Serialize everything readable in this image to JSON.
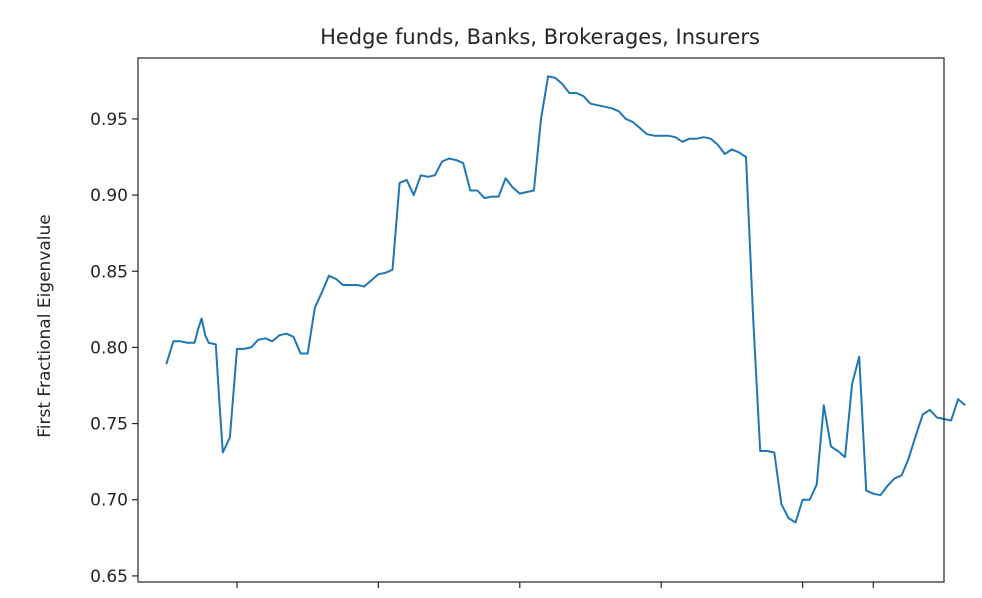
{
  "chart_data": {
    "type": "line",
    "title": "Hedge funds, Banks, Brokerages, Insurers",
    "xlabel": "",
    "ylabel": "First Fractional Eigenvalue",
    "ylim": [
      0.646,
      0.99
    ],
    "xlim": [
      -8,
      220
    ],
    "yticks": [
      "0.65",
      "0.70",
      "0.75",
      "0.80",
      "0.85",
      "0.90",
      "0.95"
    ],
    "ytick_values": [
      0.65,
      0.7,
      0.75,
      0.8,
      0.85,
      0.9,
      0.95
    ],
    "xtick_values": [
      20,
      60,
      100,
      140,
      180,
      200
    ],
    "grid": false,
    "color": "#1f77b4",
    "series": [
      {
        "x": [
          0,
          2,
          4,
          6,
          8,
          9,
          10,
          11,
          12,
          14,
          15,
          16,
          17,
          18,
          20,
          22,
          24,
          26,
          28,
          30,
          32,
          34,
          36,
          38,
          40,
          42,
          44,
          46,
          48,
          50,
          52,
          54,
          56,
          58,
          60,
          62,
          64,
          66,
          68,
          70,
          72,
          74,
          76,
          78,
          80,
          82,
          84,
          86,
          88,
          90,
          92,
          94,
          96,
          98,
          100,
          102,
          104,
          106,
          108,
          110,
          112,
          114,
          116,
          118,
          120,
          122,
          124,
          126,
          128,
          130,
          132,
          134,
          136,
          138,
          140,
          142,
          144,
          146,
          148,
          150,
          152,
          154,
          156,
          158,
          160,
          162,
          164,
          166,
          168,
          170,
          172,
          174,
          176,
          178,
          180,
          182,
          184,
          186,
          188,
          190,
          192,
          194,
          196,
          198,
          200,
          202,
          204,
          206,
          208,
          210,
          212,
          214,
          216,
          218,
          220,
          222,
          224,
          226
        ],
        "y": [
          0.789,
          0.804,
          0.804,
          0.803,
          0.803,
          0.812,
          0.819,
          0.808,
          0.803,
          0.802,
          0.765,
          0.731,
          0.736,
          0.741,
          0.799,
          0.799,
          0.8,
          0.805,
          0.806,
          0.804,
          0.808,
          0.809,
          0.807,
          0.796,
          0.796,
          0.826,
          0.836,
          0.847,
          0.845,
          0.841,
          0.841,
          0.841,
          0.84,
          0.844,
          0.848,
          0.849,
          0.851,
          0.908,
          0.91,
          0.9,
          0.913,
          0.912,
          0.913,
          0.922,
          0.924,
          0.923,
          0.921,
          0.903,
          0.903,
          0.898,
          0.899,
          0.899,
          0.911,
          0.905,
          0.901,
          0.902,
          0.903,
          0.95,
          0.978,
          0.977,
          0.973,
          0.967,
          0.967,
          0.965,
          0.96,
          0.959,
          0.958,
          0.957,
          0.955,
          0.95,
          0.948,
          0.944,
          0.94,
          0.939,
          0.939,
          0.939,
          0.938,
          0.935,
          0.937,
          0.937,
          0.938,
          0.937,
          0.933,
          0.927,
          0.93,
          0.928,
          0.925,
          0.82,
          0.732,
          0.732,
          0.731,
          0.697,
          0.688,
          0.685,
          0.7,
          0.7,
          0.71,
          0.762,
          0.735,
          0.732,
          0.728,
          0.776,
          0.794,
          0.706,
          0.704,
          0.703,
          0.709,
          0.714,
          0.716,
          0.727,
          0.742,
          0.756,
          0.759,
          0.754,
          0.753,
          0.752,
          0.766,
          0.762
        ]
      }
    ]
  }
}
